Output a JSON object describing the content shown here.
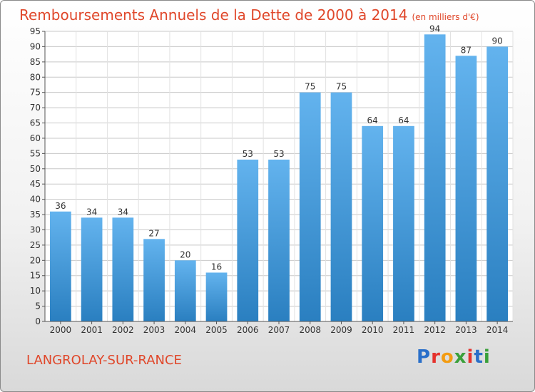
{
  "header": {
    "title": "Remboursements Annuels de la Dette de 2000 à 2014",
    "subtitle": "(en milliers d'€)"
  },
  "footer": {
    "commune": "LANGROLAY-SUR-RANCE",
    "logo_letters": [
      "P",
      "r",
      "o",
      "x",
      "i",
      "t",
      "i"
    ],
    "logo_colors": [
      "#2a6fc9",
      "#e5322d",
      "#f39c12",
      "#3aa03a",
      "#e5322d",
      "#2a6fc9",
      "#3aa03a"
    ]
  },
  "colors": {
    "bar_light": "#63b3ee",
    "bar_dark": "#2a7fc0",
    "title": "#e0472a",
    "grid": "#c8c8c8"
  },
  "chart_data": {
    "type": "bar",
    "title": "Remboursements Annuels de la Dette de 2000 à 2014",
    "subtitle": "(en milliers d'€)",
    "categories": [
      "2000",
      "2001",
      "2002",
      "2003",
      "2004",
      "2005",
      "2006",
      "2007",
      "2008",
      "2009",
      "2010",
      "2011",
      "2012",
      "2013",
      "2014"
    ],
    "values": [
      36,
      34,
      34,
      27,
      20,
      16,
      53,
      53,
      75,
      75,
      64,
      64,
      94,
      87,
      90
    ],
    "ylim": [
      0,
      95
    ],
    "yticks": [
      0,
      5,
      10,
      15,
      20,
      25,
      30,
      35,
      40,
      45,
      50,
      55,
      60,
      65,
      70,
      75,
      80,
      85,
      90,
      95
    ],
    "grid": true,
    "data_labels": true
  }
}
